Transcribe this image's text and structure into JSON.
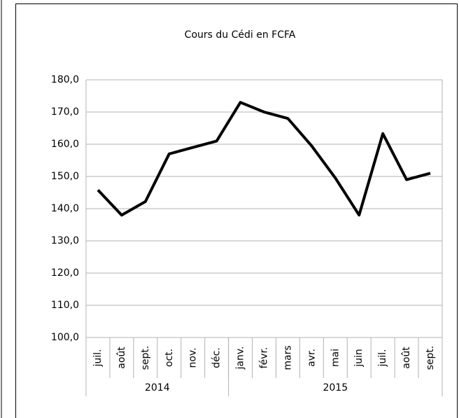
{
  "chart_data": {
    "type": "line",
    "title": "Cours du Cédi en FCFA",
    "categories": [
      "juil.",
      "août",
      "sept.",
      "oct.",
      "nov.",
      "déc.",
      "janv.",
      "févr.",
      "mars",
      "avr.",
      "mai",
      "juin",
      "juil.",
      "août",
      "sept."
    ],
    "groups": [
      {
        "label": "2014",
        "size": 6
      },
      {
        "label": "2015",
        "size": 9
      }
    ],
    "values": [
      145.8,
      138,
      142.2,
      157,
      159,
      161,
      173,
      170,
      168,
      159.5,
      149.5,
      138,
      163.3,
      149,
      151
    ],
    "color": "#000000",
    "ylim": [
      100,
      180
    ],
    "yticks": [
      {
        "value": 100,
        "label": "100,0"
      },
      {
        "value": 110,
        "label": "110,0"
      },
      {
        "value": 120,
        "label": "120,0"
      },
      {
        "value": 130,
        "label": "130,0"
      },
      {
        "value": 140,
        "label": "140,0"
      },
      {
        "value": 150,
        "label": "150,0"
      },
      {
        "value": 160,
        "label": "160,0"
      },
      {
        "value": 170,
        "label": "170,0"
      },
      {
        "value": 180,
        "label": "180,0"
      }
    ],
    "grid": true
  }
}
